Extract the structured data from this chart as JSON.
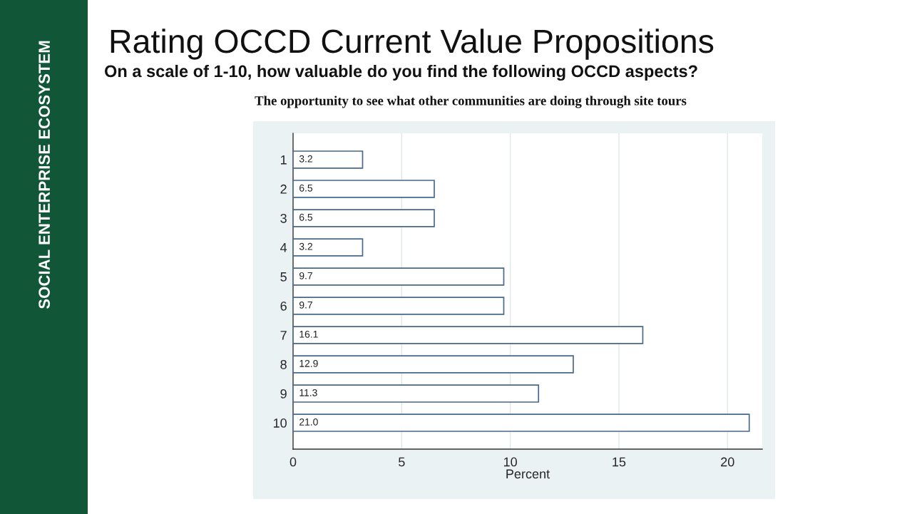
{
  "chart_data": {
    "type": "bar",
    "orientation": "horizontal",
    "title": "Rating OCCD Current Value Propositions",
    "subtitle": "On a scale of 1-10, how valuable do you find the following OCCD aspects?",
    "annotations": [
      "The opportunity to see what other communities are doing through site tours",
      "SOCIAL ENTERPRISE ECOSYSTEM"
    ],
    "xlabel": "Percent",
    "categories": [
      "1",
      "2",
      "3",
      "4",
      "5",
      "6",
      "7",
      "8",
      "9",
      "10"
    ],
    "values": [
      3.2,
      6.5,
      6.5,
      3.2,
      9.7,
      9.7,
      16.1,
      12.9,
      11.3,
      21.0
    ],
    "value_labels": [
      "3.2",
      "6.5",
      "6.5",
      "3.2",
      "9.7",
      "9.7",
      "16.1",
      "12.9",
      "11.3",
      "21.0"
    ],
    "color": "#45688c",
    "xlim": [
      0,
      21.6
    ],
    "xticks": [
      0,
      5,
      10,
      15,
      20
    ],
    "grid": "x"
  }
}
